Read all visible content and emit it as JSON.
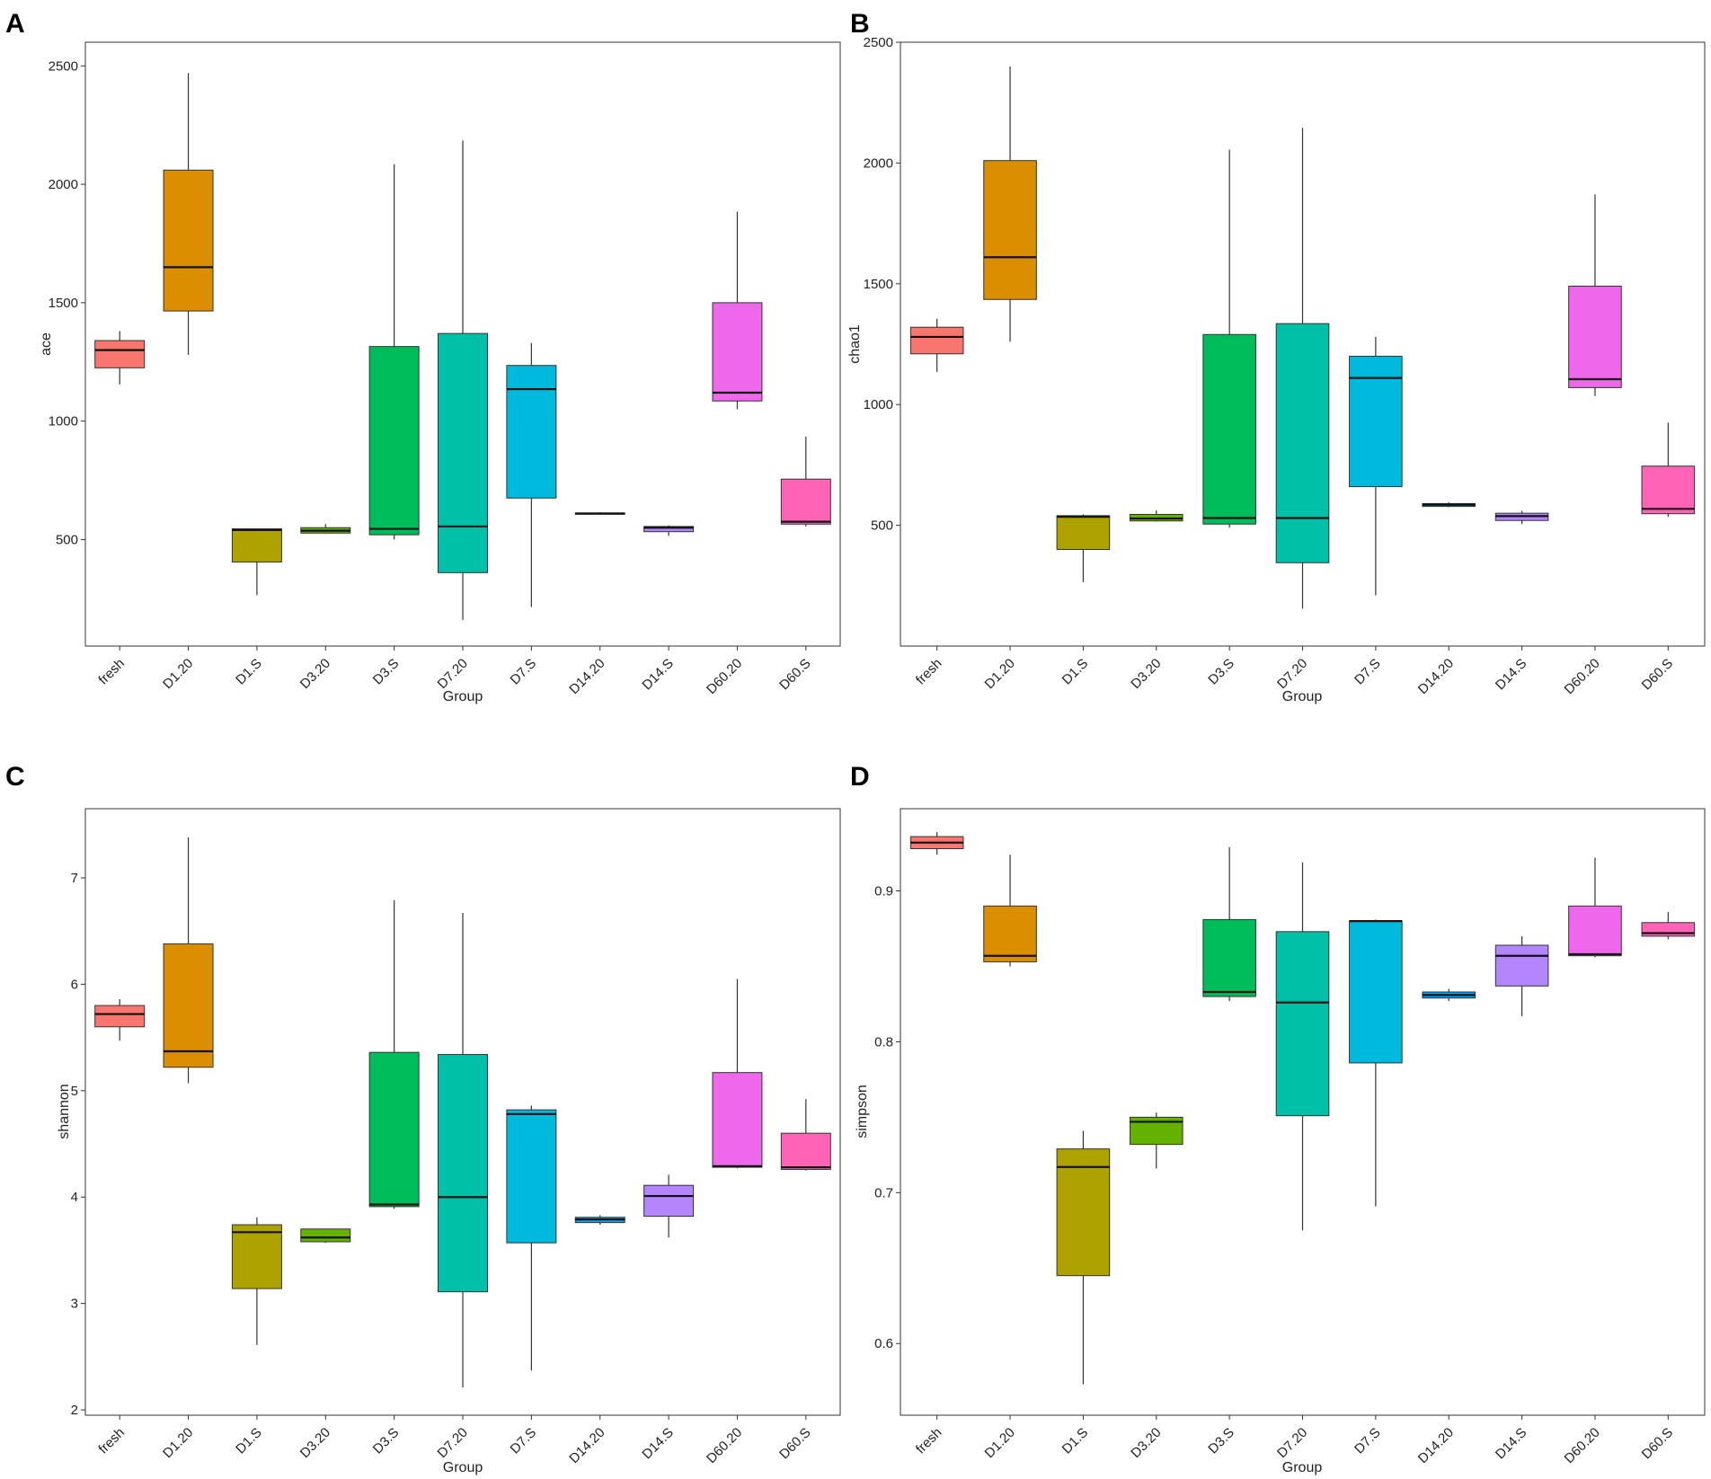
{
  "colors": {
    "fresh": "#F8766D",
    "D1.20": "#DB8E00",
    "D1.S": "#AEA200",
    "D3.20": "#64B200",
    "D3.S": "#00BD5C",
    "D7.20": "#00C1A7",
    "D7.S": "#00BADE",
    "D14.20": "#00A6FF",
    "D14.S": "#B385FF",
    "D60.20": "#EF67EB",
    "D60.S": "#FF63B6"
  },
  "chart_data": [
    {
      "panel": "A",
      "type": "boxplot",
      "xlabel": "Group",
      "ylabel": "ace",
      "ylim": [
        50,
        2600
      ],
      "yticks": [
        500,
        1000,
        1500,
        2000,
        2500
      ],
      "ytick_labels": [
        "500",
        "1000",
        "1500",
        "2000",
        "2500"
      ],
      "categories": [
        "fresh",
        "D1.20",
        "D1.S",
        "D3.20",
        "D3.S",
        "D7.20",
        "D7.S",
        "D14.20",
        "D14.S",
        "D60.20",
        "D60.S"
      ],
      "boxes": [
        {
          "group": "fresh",
          "min": 1155,
          "q1": 1225,
          "median": 1300,
          "q3": 1340,
          "max": 1380
        },
        {
          "group": "D1.20",
          "min": 1280,
          "q1": 1465,
          "median": 1650,
          "q3": 2060,
          "max": 2470
        },
        {
          "group": "D1.S",
          "min": 265,
          "q1": 405,
          "median": 540,
          "q3": 545,
          "max": 545
        },
        {
          "group": "D3.20",
          "min": 525,
          "q1": 527,
          "median": 537,
          "q3": 550,
          "max": 565
        },
        {
          "group": "D3.S",
          "min": 500,
          "q1": 520,
          "median": 545,
          "q3": 1315,
          "max": 2085
        },
        {
          "group": "D7.20",
          "min": 160,
          "q1": 360,
          "median": 555,
          "q3": 1370,
          "max": 2185
        },
        {
          "group": "D7.S",
          "min": 215,
          "q1": 675,
          "median": 1135,
          "q3": 1235,
          "max": 1330
        },
        {
          "group": "D14.20",
          "min": 605,
          "q1": 607,
          "median": 610,
          "q3": 612,
          "max": 615
        },
        {
          "group": "D14.S",
          "min": 515,
          "q1": 533,
          "median": 550,
          "q3": 555,
          "max": 560
        },
        {
          "group": "D60.20",
          "min": 1050,
          "q1": 1085,
          "median": 1120,
          "q3": 1500,
          "max": 1885
        },
        {
          "group": "D60.S",
          "min": 555,
          "q1": 565,
          "median": 575,
          "q3": 755,
          "max": 935
        }
      ]
    },
    {
      "panel": "B",
      "type": "boxplot",
      "xlabel": "Group",
      "ylabel": "chao1",
      "ylim": [
        0,
        2500
      ],
      "yticks": [
        500,
        1000,
        1500,
        2000,
        2500
      ],
      "ytick_labels": [
        "500",
        "1000",
        "1500",
        "2000",
        "2500"
      ],
      "categories": [
        "fresh",
        "D1.20",
        "D1.S",
        "D3.20",
        "D3.S",
        "D7.20",
        "D7.S",
        "D14.20",
        "D14.S",
        "D60.20",
        "D60.S"
      ],
      "boxes": [
        {
          "group": "fresh",
          "min": 1135,
          "q1": 1210,
          "median": 1280,
          "q3": 1320,
          "max": 1355
        },
        {
          "group": "D1.20",
          "min": 1260,
          "q1": 1435,
          "median": 1610,
          "q3": 2010,
          "max": 2400
        },
        {
          "group": "D1.S",
          "min": 265,
          "q1": 400,
          "median": 535,
          "q3": 540,
          "max": 545
        },
        {
          "group": "D3.20",
          "min": 515,
          "q1": 518,
          "median": 528,
          "q3": 545,
          "max": 562
        },
        {
          "group": "D3.S",
          "min": 490,
          "q1": 505,
          "median": 530,
          "q3": 1290,
          "max": 2055
        },
        {
          "group": "D7.20",
          "min": 155,
          "q1": 345,
          "median": 530,
          "q3": 1335,
          "max": 2145
        },
        {
          "group": "D7.S",
          "min": 210,
          "q1": 660,
          "median": 1110,
          "q3": 1200,
          "max": 1280
        },
        {
          "group": "D14.20",
          "min": 575,
          "q1": 578,
          "median": 585,
          "q3": 590,
          "max": 595
        },
        {
          "group": "D14.S",
          "min": 505,
          "q1": 520,
          "median": 538,
          "q3": 550,
          "max": 560
        },
        {
          "group": "D60.20",
          "min": 1035,
          "q1": 1070,
          "median": 1105,
          "q3": 1490,
          "max": 1870
        },
        {
          "group": "D60.S",
          "min": 535,
          "q1": 548,
          "median": 568,
          "q3": 745,
          "max": 925
        }
      ]
    },
    {
      "panel": "C",
      "type": "boxplot",
      "xlabel": "Group",
      "ylabel": "shannon",
      "ylim": [
        1.95,
        7.65
      ],
      "yticks": [
        2,
        3,
        4,
        5,
        6,
        7
      ],
      "ytick_labels": [
        "2",
        "3",
        "4",
        "5",
        "6",
        "7"
      ],
      "categories": [
        "fresh",
        "D1.20",
        "D1.S",
        "D3.20",
        "D3.S",
        "D7.20",
        "D7.S",
        "D14.20",
        "D14.S",
        "D60.20",
        "D60.S"
      ],
      "boxes": [
        {
          "group": "fresh",
          "min": 5.47,
          "q1": 5.6,
          "median": 5.72,
          "q3": 5.8,
          "max": 5.86
        },
        {
          "group": "D1.20",
          "min": 5.07,
          "q1": 5.22,
          "median": 5.37,
          "q3": 6.38,
          "max": 7.38
        },
        {
          "group": "D1.S",
          "min": 2.61,
          "q1": 3.14,
          "median": 3.67,
          "q3": 3.74,
          "max": 3.81
        },
        {
          "group": "D3.20",
          "min": 3.57,
          "q1": 3.58,
          "median": 3.62,
          "q3": 3.7,
          "max": 3.7
        },
        {
          "group": "D3.S",
          "min": 3.89,
          "q1": 3.91,
          "median": 3.93,
          "q3": 5.36,
          "max": 6.79
        },
        {
          "group": "D7.20",
          "min": 2.21,
          "q1": 3.11,
          "median": 4.0,
          "q3": 5.34,
          "max": 6.67
        },
        {
          "group": "D7.S",
          "min": 2.37,
          "q1": 3.57,
          "median": 4.78,
          "q3": 4.82,
          "max": 4.86
        },
        {
          "group": "D14.20",
          "min": 3.74,
          "q1": 3.76,
          "median": 3.79,
          "q3": 3.81,
          "max": 3.83
        },
        {
          "group": "D14.S",
          "min": 3.62,
          "q1": 3.82,
          "median": 4.01,
          "q3": 4.11,
          "max": 4.21
        },
        {
          "group": "D60.20",
          "min": 4.27,
          "q1": 4.28,
          "median": 4.29,
          "q3": 5.17,
          "max": 6.05
        },
        {
          "group": "D60.S",
          "min": 4.25,
          "q1": 4.26,
          "median": 4.28,
          "q3": 4.6,
          "max": 4.92
        }
      ]
    },
    {
      "panel": "D",
      "type": "boxplot",
      "xlabel": "Group",
      "ylabel": "simpson",
      "ylim": [
        0.5525,
        0.9545
      ],
      "yticks": [
        0.6,
        0.7,
        0.8,
        0.9
      ],
      "ytick_labels": [
        "0.6",
        "0.7",
        "0.8",
        "0.9"
      ],
      "categories": [
        "fresh",
        "D1.20",
        "D1.S",
        "D3.20",
        "D3.S",
        "D7.20",
        "D7.S",
        "D14.20",
        "D14.S",
        "D60.20",
        "D60.S"
      ],
      "boxes": [
        {
          "group": "fresh",
          "min": 0.924,
          "q1": 0.928,
          "median": 0.932,
          "q3": 0.936,
          "max": 0.939
        },
        {
          "group": "D1.20",
          "min": 0.85,
          "q1": 0.853,
          "median": 0.857,
          "q3": 0.89,
          "max": 0.924
        },
        {
          "group": "D1.S",
          "min": 0.573,
          "q1": 0.645,
          "median": 0.717,
          "q3": 0.729,
          "max": 0.741
        },
        {
          "group": "D3.20",
          "min": 0.716,
          "q1": 0.732,
          "median": 0.747,
          "q3": 0.75,
          "max": 0.753
        },
        {
          "group": "D3.S",
          "min": 0.827,
          "q1": 0.83,
          "median": 0.833,
          "q3": 0.881,
          "max": 0.929
        },
        {
          "group": "D7.20",
          "min": 0.675,
          "q1": 0.751,
          "median": 0.826,
          "q3": 0.873,
          "max": 0.919
        },
        {
          "group": "D7.S",
          "min": 0.691,
          "q1": 0.786,
          "median": 0.88,
          "q3": 0.88,
          "max": 0.881
        },
        {
          "group": "D14.20",
          "min": 0.827,
          "q1": 0.829,
          "median": 0.831,
          "q3": 0.833,
          "max": 0.835
        },
        {
          "group": "D14.S",
          "min": 0.817,
          "q1": 0.837,
          "median": 0.857,
          "q3": 0.864,
          "max": 0.87
        },
        {
          "group": "D60.20",
          "min": 0.856,
          "q1": 0.857,
          "median": 0.858,
          "q3": 0.89,
          "max": 0.922
        },
        {
          "group": "D60.S",
          "min": 0.868,
          "q1": 0.87,
          "median": 0.872,
          "q3": 0.879,
          "max": 0.886
        }
      ]
    }
  ]
}
